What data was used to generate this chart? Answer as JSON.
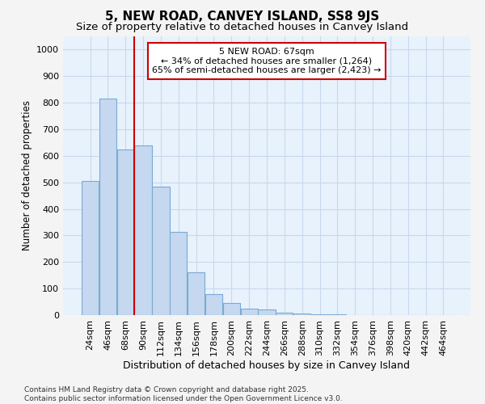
{
  "title": "5, NEW ROAD, CANVEY ISLAND, SS8 9JS",
  "subtitle": "Size of property relative to detached houses in Canvey Island",
  "xlabel": "Distribution of detached houses by size in Canvey Island",
  "ylabel": "Number of detached properties",
  "categories": [
    "24sqm",
    "46sqm",
    "68sqm",
    "90sqm",
    "112sqm",
    "134sqm",
    "156sqm",
    "178sqm",
    "200sqm",
    "222sqm",
    "244sqm",
    "266sqm",
    "288sqm",
    "310sqm",
    "332sqm",
    "354sqm",
    "376sqm",
    "398sqm",
    "420sqm",
    "442sqm",
    "464sqm"
  ],
  "values": [
    505,
    815,
    625,
    640,
    485,
    315,
    160,
    78,
    45,
    25,
    20,
    10,
    5,
    3,
    2,
    1,
    1,
    0,
    0,
    0,
    0
  ],
  "bar_color": "#c5d8f0",
  "bar_edge_color": "#7aaad4",
  "vline_index": 2,
  "vline_color": "#cc0000",
  "annotation_text": "5 NEW ROAD: 67sqm\n← 34% of detached houses are smaller (1,264)\n65% of semi-detached houses are larger (2,423) →",
  "annotation_box_facecolor": "#ffffff",
  "annotation_box_edgecolor": "#cc0000",
  "ylim": [
    0,
    1050
  ],
  "yticks": [
    0,
    100,
    200,
    300,
    400,
    500,
    600,
    700,
    800,
    900,
    1000
  ],
  "grid_color": "#c8d8ee",
  "plot_bg_color": "#e8f2fc",
  "fig_bg_color": "#f4f4f4",
  "footer": "Contains HM Land Registry data © Crown copyright and database right 2025.\nContains public sector information licensed under the Open Government Licence v3.0.",
  "title_fontsize": 11,
  "subtitle_fontsize": 9.5,
  "xlabel_fontsize": 9,
  "ylabel_fontsize": 8.5,
  "tick_fontsize": 8,
  "annot_fontsize": 8,
  "footer_fontsize": 6.5
}
